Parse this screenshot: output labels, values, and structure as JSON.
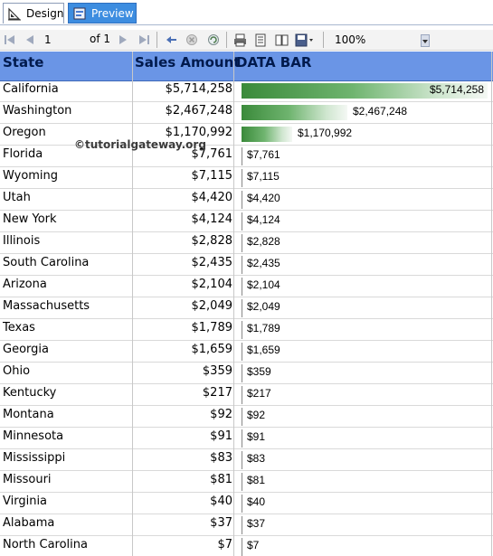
{
  "tabs": [
    {
      "label": "Design"
    },
    {
      "label": "Preview"
    }
  ],
  "toolbar": {
    "page_value": "1",
    "page_of": "of  1",
    "zoom": "100%"
  },
  "table": {
    "headers": [
      "State",
      "Sales Amount",
      "DATA BAR"
    ],
    "rows": [
      {
        "state": "California",
        "amount": "$5,714,258",
        "bar_label": "$5,714,258",
        "value": 5714258
      },
      {
        "state": "Washington",
        "amount": "$2,467,248",
        "bar_label": "$2,467,248",
        "value": 2467248
      },
      {
        "state": "Oregon",
        "amount": "$1,170,992",
        "bar_label": "$1,170,992",
        "value": 1170992
      },
      {
        "state": "Florida",
        "amount": "$7,761",
        "bar_label": "$7,761",
        "value": 7761
      },
      {
        "state": "Wyoming",
        "amount": "$7,115",
        "bar_label": "$7,115",
        "value": 7115
      },
      {
        "state": "Utah",
        "amount": "$4,420",
        "bar_label": "$4,420",
        "value": 4420
      },
      {
        "state": "New York",
        "amount": "$4,124",
        "bar_label": "$4,124",
        "value": 4124
      },
      {
        "state": "Illinois",
        "amount": "$2,828",
        "bar_label": "$2,828",
        "value": 2828
      },
      {
        "state": "South Carolina",
        "amount": "$2,435",
        "bar_label": "$2,435",
        "value": 2435
      },
      {
        "state": "Arizona",
        "amount": "$2,104",
        "bar_label": "$2,104",
        "value": 2104
      },
      {
        "state": "Massachusetts",
        "amount": "$2,049",
        "bar_label": "$2,049",
        "value": 2049
      },
      {
        "state": "Texas",
        "amount": "$1,789",
        "bar_label": "$1,789",
        "value": 1789
      },
      {
        "state": "Georgia",
        "amount": "$1,659",
        "bar_label": "$1,659",
        "value": 1659
      },
      {
        "state": "Ohio",
        "amount": "$359",
        "bar_label": "$359",
        "value": 359
      },
      {
        "state": "Kentucky",
        "amount": "$217",
        "bar_label": "$217",
        "value": 217
      },
      {
        "state": "Montana",
        "amount": "$92",
        "bar_label": "$92",
        "value": 92
      },
      {
        "state": "Minnesota",
        "amount": "$91",
        "bar_label": "$91",
        "value": 91
      },
      {
        "state": "Mississippi",
        "amount": "$83",
        "bar_label": "$83",
        "value": 83
      },
      {
        "state": "Missouri",
        "amount": "$81",
        "bar_label": "$81",
        "value": 81
      },
      {
        "state": "Virginia",
        "amount": "$40",
        "bar_label": "$40",
        "value": 40
      },
      {
        "state": "Alabama",
        "amount": "$37",
        "bar_label": "$37",
        "value": 37
      },
      {
        "state": "North Carolina",
        "amount": "$7",
        "bar_label": "$7",
        "value": 7
      }
    ]
  },
  "watermark": "©tutorialgateway.org",
  "colors": {
    "header_bg": "#6a95e6",
    "bar_start": "#3a8a3a",
    "bar_end": "#f4f8f4",
    "preview_tab": "#3d8de0"
  }
}
